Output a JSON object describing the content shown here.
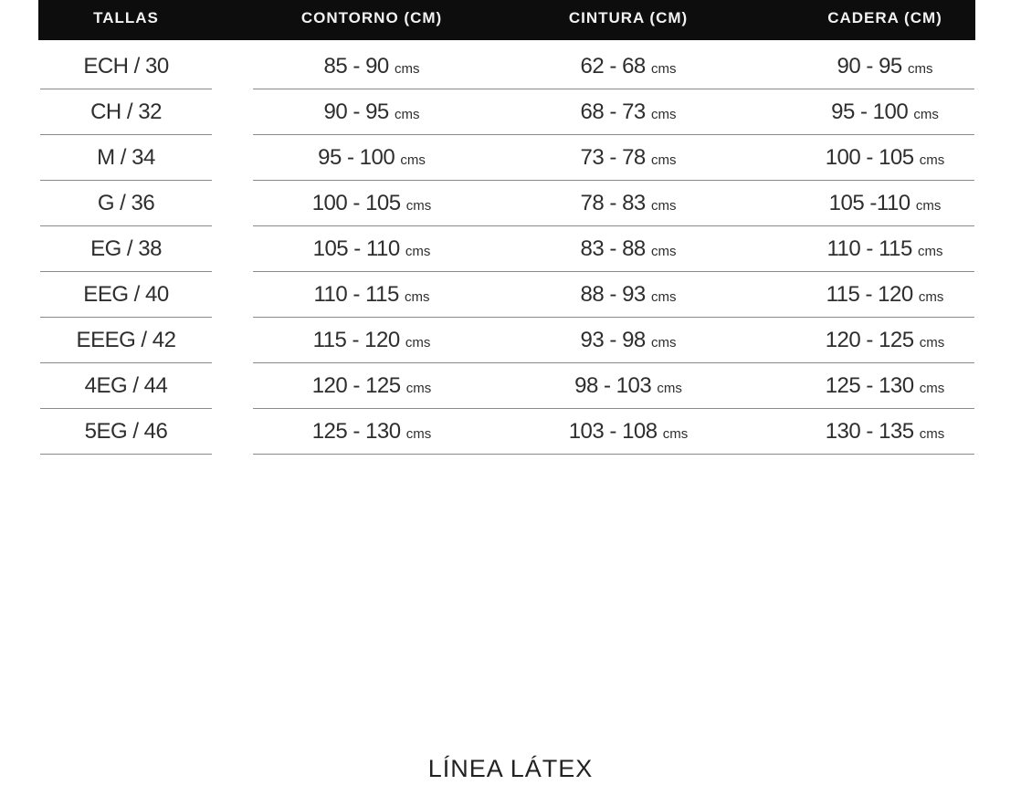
{
  "header": [
    "TALLAS",
    "CONTORNO (CM)",
    "CINTURA (CM)",
    "CADERA (CM)"
  ],
  "unit": "cms",
  "rows": [
    {
      "size": "ECH / 30",
      "contorno": "85 - 90",
      "cintura": "62 - 68",
      "cadera": "90 - 95"
    },
    {
      "size": "CH / 32",
      "contorno": "90 - 95",
      "cintura": "68 - 73",
      "cadera": "95 - 100"
    },
    {
      "size": "M / 34",
      "contorno": "95 - 100",
      "cintura": "73 - 78",
      "cadera": "100 - 105"
    },
    {
      "size": "G / 36",
      "contorno": "100 - 105",
      "cintura": "78 - 83",
      "cadera": "105 -110"
    },
    {
      "size": "EG / 38",
      "contorno": "105 - 110",
      "cintura": "83 - 88",
      "cadera": "110 - 115"
    },
    {
      "size": "EEG / 40",
      "contorno": "110 - 115",
      "cintura": "88 - 93",
      "cadera": "115 - 120"
    },
    {
      "size": "EEEG / 42",
      "contorno": "115 - 120",
      "cintura": "93 - 98",
      "cadera": "120 - 125"
    },
    {
      "size": "4EG / 44",
      "contorno": "120 - 125",
      "cintura": "98 - 103",
      "cadera": "125 - 130"
    },
    {
      "size": "5EG / 46",
      "contorno": "125 - 130",
      "cintura": "103 - 108",
      "cadera": "130 - 135"
    }
  ],
  "footer": "LÍNEA LÁTEX"
}
